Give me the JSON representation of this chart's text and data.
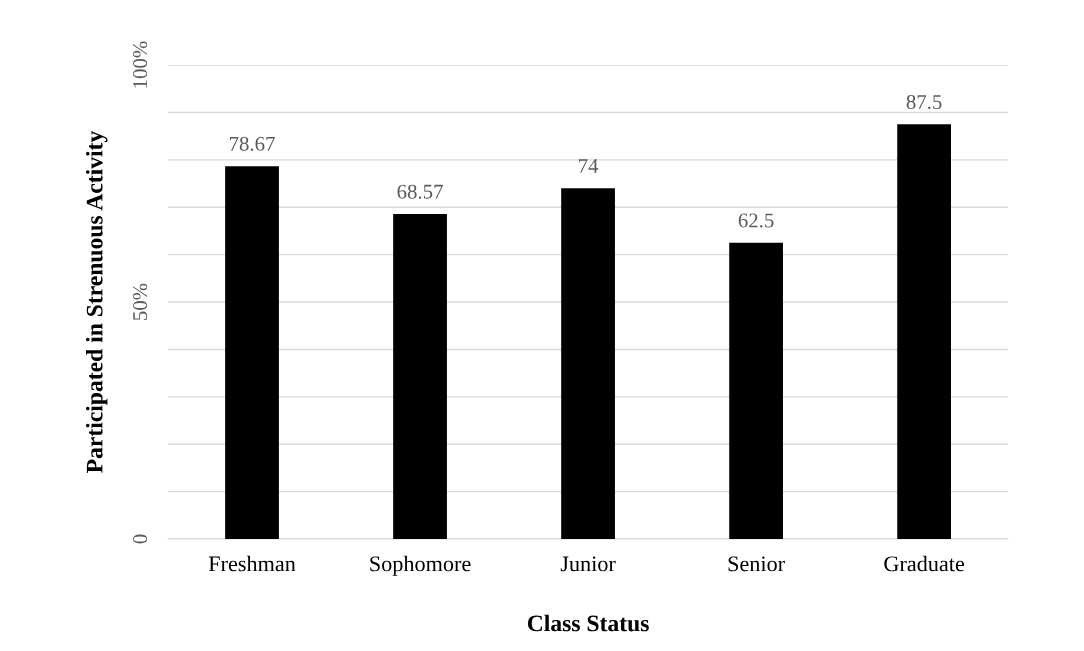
{
  "chart_data": {
    "type": "bar",
    "xlabel": "Class Status",
    "ylabel": "Participated in Strenuous Activity",
    "categories": [
      "Freshman",
      "Sophomore",
      "Junior",
      "Senior",
      "Graduate"
    ],
    "values": [
      78.67,
      68.57,
      74,
      62.5,
      87.5
    ],
    "color": "#000000",
    "data_labels": true,
    "ylim": [
      0,
      100
    ],
    "yticks": [
      0,
      {
        "value": 10,
        "label": null
      },
      {
        "value": 20,
        "label": null
      },
      {
        "value": 30,
        "label": null
      },
      {
        "value": 40,
        "label": null
      },
      {
        "value": 50,
        "label": "50%"
      },
      {
        "value": 60,
        "label": null
      },
      {
        "value": 70,
        "label": null
      },
      {
        "value": 80,
        "label": null
      },
      {
        "value": 90,
        "label": null
      },
      {
        "value": 100,
        "label": "100%"
      }
    ],
    "grid": "y",
    "legend": false
  }
}
